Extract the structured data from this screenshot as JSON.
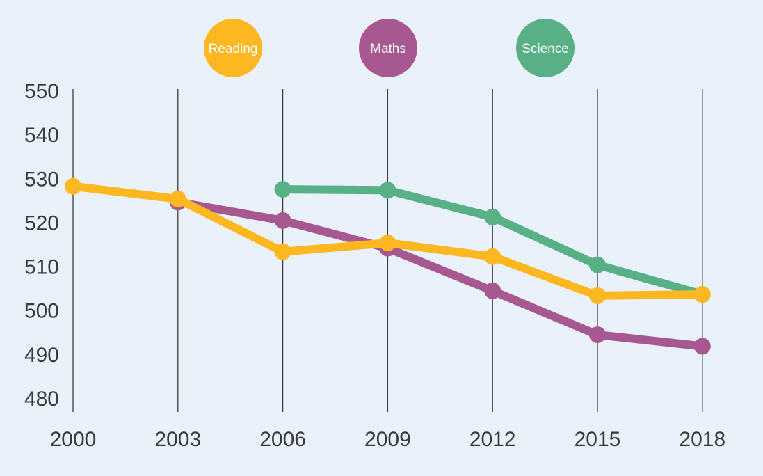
{
  "chart_data": {
    "type": "line",
    "title": "",
    "xlabel": "",
    "ylabel": "",
    "x": [
      "2000",
      "2003",
      "2006",
      "2009",
      "2012",
      "2015",
      "2018"
    ],
    "ylim": [
      480,
      550
    ],
    "yticks": [
      480,
      490,
      500,
      510,
      520,
      530,
      540,
      550
    ],
    "grid": "vertical",
    "legend_position": "top",
    "series": [
      {
        "name": "Science",
        "color": "#57b086",
        "values": [
          null,
          null,
          527.5,
          527.3,
          521.2,
          510.3,
          503.6
        ]
      },
      {
        "name": "Maths",
        "color": "#a85890",
        "values": [
          null,
          524.6,
          520.4,
          514.1,
          504.4,
          494.4,
          491.8
        ]
      },
      {
        "name": "Reading",
        "color": "#fdb721",
        "values": [
          528.2,
          525.3,
          513.3,
          515.3,
          512.2,
          503.3,
          503.6
        ]
      }
    ]
  }
}
